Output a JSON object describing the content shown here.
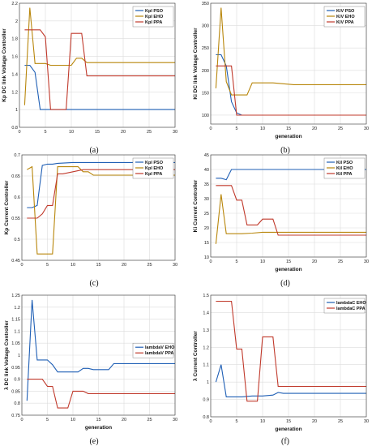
{
  "chart_data": [
    {
      "type": "line",
      "xlabel": "",
      "ylabel": "Kp DC link Voltage Controller",
      "caption": "(a)",
      "xlim": [
        0,
        30
      ],
      "ylim": [
        0.8,
        2.2
      ],
      "xticks": [
        "0",
        "5",
        "10",
        "15",
        "20",
        "25",
        "30"
      ],
      "yticks": [
        "0.8",
        "1",
        "1.2",
        "1.4",
        "1.6",
        "1.8",
        "2",
        "2.2"
      ],
      "grid": true,
      "legend_position": "top-right",
      "series": [
        {
          "name": "Kpl PSO",
          "color": "#1f5fb5",
          "x": [
            1,
            2,
            3,
            4,
            5,
            6,
            8,
            10,
            12,
            14,
            15,
            20,
            25,
            30
          ],
          "y": [
            1.5,
            1.5,
            1.42,
            1.0,
            1.0,
            1.0,
            1.0,
            1.0,
            1.0,
            1.0,
            1.0,
            1.0,
            1.0,
            1.0
          ]
        },
        {
          "name": "Kpl EHO",
          "color": "#b8860b",
          "x": [
            1,
            2,
            3,
            4,
            5,
            6,
            7,
            8,
            9,
            10,
            11,
            12,
            13,
            14,
            15,
            20,
            25,
            30
          ],
          "y": [
            1.05,
            2.15,
            1.52,
            1.52,
            1.52,
            1.5,
            1.5,
            1.5,
            1.5,
            1.5,
            1.58,
            1.58,
            1.53,
            1.53,
            1.53,
            1.53,
            1.53,
            1.53
          ]
        },
        {
          "name": "Kpl PPA",
          "color": "#c0392b",
          "x": [
            1,
            2,
            3,
            4,
            5,
            6,
            7,
            8,
            9,
            10,
            11,
            12,
            13,
            14,
            15,
            20,
            25,
            30
          ],
          "y": [
            1.9,
            1.9,
            1.9,
            1.9,
            1.82,
            1.0,
            1.0,
            1.0,
            1.0,
            1.86,
            1.86,
            1.86,
            1.38,
            1.38,
            1.38,
            1.38,
            1.38,
            1.38
          ]
        }
      ]
    },
    {
      "type": "line",
      "xlabel": "generation",
      "ylabel": "Ki DC link Voltage Controller",
      "caption": "(b)",
      "xlim": [
        0,
        30
      ],
      "ylim": [
        80,
        350
      ],
      "xticks": [
        "0",
        "5",
        "10",
        "15",
        "20",
        "25",
        "30"
      ],
      "yticks": [
        "100",
        "150",
        "200",
        "250",
        "300",
        "350"
      ],
      "grid": true,
      "legend_position": "top-right",
      "series": [
        {
          "name": "KiV PSO",
          "color": "#1f5fb5",
          "x": [
            1,
            2,
            3,
            4,
            5,
            6,
            10,
            15,
            20,
            25,
            30
          ],
          "y": [
            235,
            235,
            210,
            130,
            105,
            100,
            100,
            100,
            100,
            100,
            100
          ]
        },
        {
          "name": "KiV EHO",
          "color": "#b8860b",
          "x": [
            1,
            2,
            3,
            4,
            5,
            6,
            7,
            8,
            10,
            12,
            14,
            16,
            18,
            20,
            25,
            30
          ],
          "y": [
            160,
            340,
            175,
            145,
            145,
            145,
            145,
            172,
            172,
            172,
            170,
            168,
            168,
            168,
            168,
            168
          ]
        },
        {
          "name": "KiV PPA",
          "color": "#c0392b",
          "x": [
            1,
            2,
            3,
            4,
            5,
            6,
            10,
            15,
            20,
            25,
            30
          ],
          "y": [
            210,
            210,
            210,
            210,
            100,
            100,
            100,
            100,
            100,
            100,
            100
          ]
        }
      ]
    },
    {
      "type": "line",
      "xlabel": "",
      "ylabel": "Kp Current Controller",
      "caption": "(c)",
      "xlim": [
        0,
        30
      ],
      "ylim": [
        0.45,
        0.7
      ],
      "xticks": [
        "0",
        "5",
        "10",
        "15",
        "20",
        "25",
        "30"
      ],
      "yticks": [
        "0.45",
        "0.5",
        "0.55",
        "0.6",
        "0.65",
        "0.7"
      ],
      "grid": true,
      "legend_position": "top-right",
      "series": [
        {
          "name": "Kpl PSO",
          "color": "#1f5fb5",
          "x": [
            1,
            2,
            3,
            4,
            5,
            6,
            7,
            10,
            15,
            20,
            25,
            30
          ],
          "y": [
            0.575,
            0.575,
            0.58,
            0.675,
            0.678,
            0.678,
            0.68,
            0.682,
            0.682,
            0.682,
            0.682,
            0.682
          ]
        },
        {
          "name": "Kpl EHO",
          "color": "#b8860b",
          "x": [
            1,
            2,
            3,
            4,
            5,
            6,
            7,
            8,
            10,
            11,
            12,
            13,
            14,
            15,
            20,
            25,
            30
          ],
          "y": [
            0.665,
            0.672,
            0.465,
            0.465,
            0.465,
            0.465,
            0.672,
            0.672,
            0.672,
            0.672,
            0.66,
            0.66,
            0.652,
            0.652,
            0.652,
            0.652,
            0.652
          ]
        },
        {
          "name": "Kpl PPA",
          "color": "#c0392b",
          "x": [
            1,
            2,
            3,
            4,
            5,
            6,
            7,
            8,
            10,
            12,
            15,
            20,
            25,
            30
          ],
          "y": [
            0.55,
            0.55,
            0.55,
            0.56,
            0.58,
            0.58,
            0.655,
            0.655,
            0.66,
            0.665,
            0.665,
            0.665,
            0.665,
            0.665
          ]
        }
      ]
    },
    {
      "type": "line",
      "xlabel": "generation",
      "ylabel": "Ki Current Controller",
      "caption": "(d)",
      "xlim": [
        0,
        30
      ],
      "ylim": [
        10,
        45
      ],
      "xticks": [
        "0",
        "5",
        "10",
        "15",
        "20",
        "25",
        "30"
      ],
      "yticks": [
        "10",
        "15",
        "20",
        "25",
        "30",
        "35",
        "40",
        "45"
      ],
      "grid": true,
      "legend_position": "top-right",
      "series": [
        {
          "name": "KiI PSO",
          "color": "#1f5fb5",
          "x": [
            1,
            2,
            3,
            4,
            5,
            10,
            15,
            20,
            25,
            30
          ],
          "y": [
            37,
            37,
            36.5,
            40,
            40,
            40,
            40,
            40,
            40,
            40
          ]
        },
        {
          "name": "KiI EHO",
          "color": "#b8860b",
          "x": [
            1,
            2,
            3,
            4,
            5,
            6,
            8,
            10,
            12,
            13,
            15,
            20,
            25,
            30
          ],
          "y": [
            14.5,
            31.5,
            18,
            18,
            18,
            18,
            18.2,
            18.5,
            18.5,
            18.5,
            18.5,
            18.5,
            18.5,
            18.5
          ]
        },
        {
          "name": "KiI PPA",
          "color": "#c0392b",
          "x": [
            1,
            2,
            3,
            4,
            5,
            6,
            7,
            8,
            9,
            10,
            11,
            12,
            13,
            14,
            15,
            20,
            25,
            30
          ],
          "y": [
            34.5,
            34.5,
            34.5,
            34.5,
            29.5,
            29.5,
            21,
            21,
            21,
            23,
            23,
            23,
            17.5,
            17.5,
            17.5,
            17.5,
            17.5,
            17.5
          ]
        }
      ]
    },
    {
      "type": "line",
      "xlabel": "generation",
      "ylabel": "λ DC link Voltage Controller",
      "caption": "(e)",
      "xlim": [
        0,
        30
      ],
      "ylim": [
        0.75,
        1.25
      ],
      "xticks": [
        "0",
        "5",
        "10",
        "15",
        "20",
        "25",
        "30"
      ],
      "yticks": [
        "0.75",
        "0.8",
        "0.85",
        "0.9",
        "0.95",
        "1",
        "1.05",
        "1.1",
        "1.15",
        "1.2",
        "1.25"
      ],
      "grid": true,
      "legend_position": "center-right",
      "series": [
        {
          "name": "lambdaV EHO",
          "color": "#1f5fb5",
          "x": [
            1,
            2,
            3,
            4,
            5,
            6,
            7,
            8,
            10,
            11,
            12,
            13,
            14,
            15,
            17,
            18,
            20,
            25,
            30
          ],
          "y": [
            0.81,
            1.23,
            0.98,
            0.98,
            0.98,
            0.96,
            0.93,
            0.93,
            0.93,
            0.93,
            0.945,
            0.945,
            0.94,
            0.94,
            0.94,
            0.965,
            0.965,
            0.965,
            0.965
          ]
        },
        {
          "name": "lambdaV PPA",
          "color": "#c0392b",
          "x": [
            1,
            2,
            3,
            4,
            5,
            6,
            7,
            8,
            9,
            10,
            11,
            12,
            13,
            15,
            20,
            25,
            30
          ],
          "y": [
            0.9,
            0.9,
            0.9,
            0.9,
            0.87,
            0.87,
            0.78,
            0.78,
            0.78,
            0.85,
            0.85,
            0.85,
            0.84,
            0.84,
            0.84,
            0.84,
            0.84
          ]
        }
      ]
    },
    {
      "type": "line",
      "xlabel": "generation",
      "ylabel": "λ Current Controller",
      "caption": "(f)",
      "xlim": [
        0,
        30
      ],
      "ylim": [
        0.8,
        1.5
      ],
      "xticks": [
        "0",
        "5",
        "10",
        "15",
        "20",
        "25",
        "30"
      ],
      "yticks": [
        "0.8",
        "0.9",
        "1",
        "1.1",
        "1.2",
        "1.3",
        "1.4",
        "1.5"
      ],
      "grid": true,
      "legend_position": "top-right",
      "series": [
        {
          "name": "lambdaC EHO",
          "color": "#1f5fb5",
          "x": [
            1,
            2,
            3,
            4,
            5,
            6,
            8,
            10,
            12,
            13,
            14,
            15,
            20,
            25,
            30
          ],
          "y": [
            1.0,
            1.1,
            0.915,
            0.915,
            0.915,
            0.915,
            0.92,
            0.92,
            0.925,
            0.94,
            0.935,
            0.935,
            0.935,
            0.935,
            0.935
          ]
        },
        {
          "name": "lambdaC PPA",
          "color": "#c0392b",
          "x": [
            1,
            2,
            3,
            4,
            5,
            6,
            7,
            8,
            9,
            10,
            11,
            12,
            13,
            15,
            20,
            25,
            30
          ],
          "y": [
            1.465,
            1.465,
            1.465,
            1.465,
            1.19,
            1.19,
            0.89,
            0.89,
            0.89,
            1.26,
            1.26,
            1.26,
            0.975,
            0.975,
            0.975,
            0.975,
            0.975
          ]
        }
      ]
    }
  ]
}
